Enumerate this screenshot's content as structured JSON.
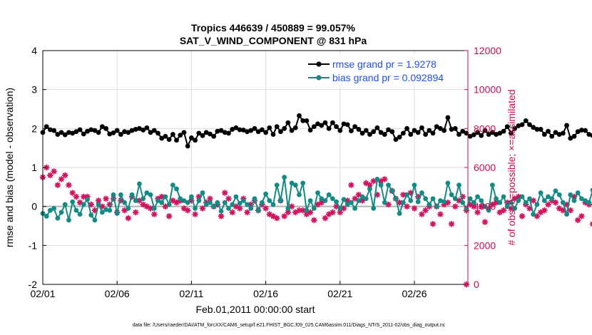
{
  "chart_data": {
    "type": "line",
    "title": "Tropics 446639 / 450889 = 99.057%",
    "subtitle": "SAT_V_WIND_COMPONENT @ 831 hPa",
    "xlabel": "Feb.01,2011 00:00:00 start",
    "ylabel_left": "rmse and bias (model - observation)",
    "ylabel_right": "# of obs: o=possible; ×=assimilated",
    "xlim": [
      0,
      28.6
    ],
    "ylim_left": [
      -2,
      4
    ],
    "ylim_right": [
      0,
      12000
    ],
    "x_ticks": [
      0,
      5,
      10,
      15,
      20,
      25
    ],
    "x_tick_labels": [
      "02/01",
      "02/06",
      "02/11",
      "02/16",
      "02/21",
      "02/26"
    ],
    "y_left_ticks": [
      -2,
      -1,
      0,
      1,
      2,
      3,
      4
    ],
    "y_left_tick_labels": [
      "-2",
      "-1",
      "0",
      "1",
      "2",
      "3",
      "4"
    ],
    "y_right_ticks": [
      0,
      2000,
      4000,
      6000,
      8000,
      10000,
      12000
    ],
    "y_right_tick_labels": [
      "0",
      "2000",
      "4000",
      "6000",
      "8000",
      "10000",
      "12000"
    ],
    "grid": true,
    "legend_position": "top-right",
    "footnote": "data file: /Users/raeder/DAI/ATM_forcXX/CAM6_setup/f.e21.FHIST_BGC.f09_025.CAM6assim.011/Diags_NTrS_2011-02/obs_diag_output.nc",
    "x_start": 0,
    "x_step": 0.25,
    "series": [
      {
        "name": "rmse grand pr = 1.9278",
        "color": "#000000",
        "axis": "left",
        "values": [
          1.9,
          2.05,
          1.97,
          1.95,
          1.85,
          1.9,
          1.84,
          1.9,
          1.88,
          1.92,
          1.97,
          1.86,
          1.93,
          1.97,
          1.95,
          1.9,
          2.05,
          2.0,
          1.86,
          1.89,
          1.95,
          1.85,
          1.92,
          1.9,
          1.95,
          1.98,
          2.0,
          1.96,
          2.02,
          1.9,
          1.95,
          1.88,
          1.75,
          1.8,
          1.72,
          1.85,
          1.7,
          1.83,
          1.9,
          1.55,
          1.76,
          1.7,
          1.88,
          1.82,
          1.9,
          1.86,
          1.8,
          1.93,
          1.95,
          1.9,
          1.88,
          1.98,
          2.02,
          1.97,
          1.96,
          1.92,
          1.95,
          2.0,
          1.92,
          1.97,
          1.9,
          2.02,
          1.85,
          2.05,
          1.92,
          2.0,
          2.15,
          1.95,
          2.02,
          2.33,
          2.2,
          2.2,
          1.96,
          2.05,
          2.12,
          2.08,
          2.15,
          2.0,
          2.15,
          2.05,
          1.95,
          2.12,
          2.1,
          1.94,
          2.05,
          1.98,
          1.88,
          1.95,
          1.85,
          1.92,
          2.02,
          1.9,
          1.85,
          1.97,
          1.92,
          1.72,
          1.78,
          1.88,
          2.0,
          1.85,
          1.95,
          1.9,
          2.02,
          1.85,
          1.95,
          1.88,
          2.05,
          2.0,
          1.95,
          2.28,
          1.98,
          2.0,
          1.85,
          1.93,
          1.88,
          1.8,
          1.84,
          1.9,
          1.82,
          1.95,
          1.85,
          1.9,
          1.85,
          1.88,
          1.93,
          2.05,
          1.88,
          2.0,
          2.07,
          2.1,
          2.2,
          2.1,
          2.03,
          1.98,
          1.98,
          1.85,
          1.93,
          1.8,
          1.9,
          1.85,
          1.88,
          2.08,
          1.75,
          1.8,
          1.92,
          1.96,
          1.95,
          1.85,
          1.82
        ]
      },
      {
        "name": "bias grand pr = 0.092894",
        "color": "#138a84",
        "axis": "left",
        "values": [
          -0.18,
          -0.25,
          -0.1,
          -0.05,
          -0.3,
          -0.15,
          0.05,
          -0.35,
          0.12,
          -0.1,
          -0.2,
          0.05,
          0.18,
          -0.22,
          -0.35,
          0.05,
          -0.15,
          -0.08,
          -0.1,
          0.3,
          -0.18,
          0.3,
          0.1,
          -0.05,
          0.3,
          0.15,
          0.58,
          0.2,
          0.35,
          0.3,
          -0.05,
          0.15,
          0.1,
          0.25,
          0.05,
          0.55,
          0.45,
          0.2,
          0.15,
          0.1,
          0.25,
          -0.05,
          0.15,
          0.35,
          0.05,
          0.1,
          0.0,
          0.1,
          -0.12,
          0.1,
          -0.05,
          0.05,
          0.25,
          0.08,
          0.15,
          0.05,
          -0.05,
          0.2,
          -0.1,
          0.1,
          0.32,
          0.15,
          0.05,
          0.55,
          0.15,
          0.75,
          -0.05,
          0.6,
          0.55,
          0.3,
          0.6,
          -0.1,
          0.15,
          -0.05,
          0.35,
          0.2,
          0.15,
          0.3,
          0.2,
          0.12,
          -0.05,
          0.18,
          0.05,
          0.1,
          -0.05,
          0.15,
          0.25,
          0.2,
          0.45,
          -0.05,
          0.7,
          0.55,
          0.1,
          0.55,
          0.4,
          0.2,
          -0.18,
          0.1,
          0.3,
          0.15,
          0.55,
          0.12,
          0.35,
          0.2,
          0.05,
          0.2,
          0.0,
          0.15,
          0.12,
          0.6,
          0.3,
          0.2,
          0.55,
          0.1,
          -0.05,
          0.2,
          0.1,
          0.25,
          0.15,
          0.0,
          -0.1,
          0.55,
          0.2,
          0.1,
          0.25,
          0.0,
          0.1,
          -0.05,
          0.15,
          0.25,
          0.1,
          0.2,
          -0.2,
          0.05,
          0.35,
          0.15,
          0.25,
          0.2,
          0.4,
          0.3,
          0.1,
          -0.2,
          0.3,
          0.15,
          0.35,
          0.2,
          0.15,
          0.1,
          0.42,
          -0.05,
          0.1
        ]
      },
      {
        "name": "obs assimilated",
        "color": "#d01460",
        "axis": "right",
        "marker": "asterisk",
        "values": [
          5500,
          6000,
          5600,
          5800,
          5100,
          5400,
          5600,
          5100,
          4700,
          4500,
          4200,
          4500,
          4500,
          4100,
          3800,
          4300,
          4000,
          4400,
          4100,
          4400,
          3700,
          4300,
          3800,
          3400,
          4500,
          3700,
          4300,
          4100,
          4000,
          3900,
          3600,
          4400,
          4500,
          4000,
          3500,
          4300,
          4200,
          4300,
          3900,
          3800,
          4300,
          3600,
          4500,
          3900,
          4200,
          4400,
          4000,
          4100,
          3500,
          4700,
          4400,
          3700,
          4000,
          3900,
          4400,
          3700,
          4100,
          4300,
          3800,
          4100,
          3900,
          3600,
          3500,
          3400,
          4300,
          3500,
          3700,
          4000,
          3700,
          3800,
          3800,
          3600,
          3700,
          3300,
          4100,
          4200,
          3400,
          3600,
          3700,
          4000,
          3700,
          3900,
          4300,
          5100,
          4400,
          4600,
          4300,
          5200,
          5100,
          5300,
          4600,
          5300,
          5400,
          4100,
          4800,
          4400,
          4200,
          4600,
          4000,
          4700,
          3900,
          4500,
          3600,
          3800,
          4000,
          3100,
          4000,
          3600,
          4100,
          4200,
          3100,
          4000,
          4300,
          4500,
          3800,
          4100,
          4000,
          3700,
          4000,
          3200,
          3900,
          4100,
          4200,
          3700,
          3800,
          4200,
          3900,
          4400,
          4500,
          3500,
          4100,
          3900,
          4300,
          3500,
          3700,
          3800,
          4100,
          4300,
          4200,
          3900,
          3800,
          4100,
          3800,
          4500,
          3300,
          3500,
          4200,
          4100,
          3100
        ]
      }
    ],
    "extra_points": [
      {
        "series": "obs assimilated",
        "x": 28.5,
        "y_right": 0
      }
    ]
  }
}
